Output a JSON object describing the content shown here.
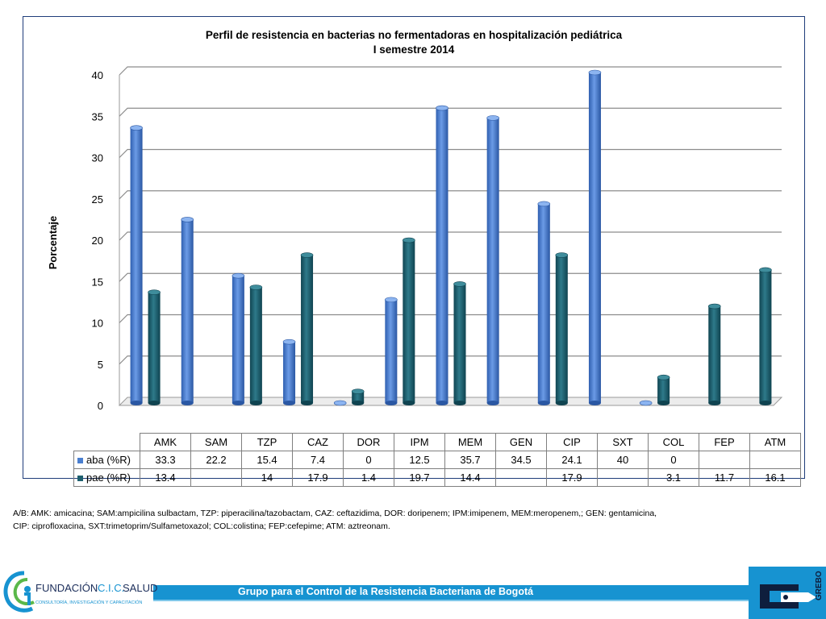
{
  "chart_data": {
    "type": "bar",
    "title": "Perfil de resistencia en bacterias no fermentadoras en hospitalización pediátrica",
    "subtitle": "I semestre 2014",
    "ylabel": "Porcentaje",
    "xlabel": "",
    "ylim": [
      0,
      40
    ],
    "yticks": [
      "0",
      "5",
      "10",
      "15",
      "20",
      "25",
      "30",
      "35",
      "40"
    ],
    "grid": true,
    "legend_placement": "data table",
    "categories": [
      "AMK",
      "SAM",
      "TZP",
      "CAZ",
      "DOR",
      "IPM",
      "MEM",
      "GEN",
      "CIP",
      "SXT",
      "COL",
      "FEP",
      "ATM"
    ],
    "series": [
      {
        "name": "aba (%R)",
        "color": "#4a7fd0",
        "values": [
          33.3,
          22.2,
          15.4,
          7.4,
          0,
          12.5,
          35.7,
          34.5,
          24.1,
          40,
          0,
          null,
          null
        ],
        "labels": [
          "33.3",
          "22.2",
          "15.4",
          "7.4",
          "0",
          "12.5",
          "35.7",
          "34.5",
          "24.1",
          "40",
          "0",
          "",
          ""
        ]
      },
      {
        "name": "pae (%R)",
        "color": "#1d5f6e",
        "values": [
          13.4,
          null,
          14,
          17.9,
          1.4,
          19.7,
          14.4,
          null,
          17.9,
          null,
          3.1,
          11.7,
          16.1
        ],
        "labels": [
          "13.4",
          "",
          "14",
          "17.9",
          "1.4",
          "19.7",
          "14.4",
          "",
          "17.9",
          "",
          "3.1",
          "11.7",
          "16.1"
        ]
      }
    ]
  },
  "footnote": {
    "line1": "A/B: AMK: amicacina; SAM:ampicilina sulbactam, TZP: piperacilina/tazobactam, CAZ: ceftazidima, DOR: doripenem;  IPM:imipenem, MEM:meropenem,; GEN: gentamicina,",
    "line2": "CIP: ciprofloxacina, SXT:trimetoprim/Sulfametoxazol; COL:colistina; FEP:cefepime; ATM: aztreonam."
  },
  "footer": {
    "org_name_part1": "FUNDACIÓN",
    "org_name_part2": "C.I.C.",
    "org_name_part3": "SALUD",
    "org_tagline": "CONSULTORÍA, INVESTIGACIÓN Y CAPACITACIÓN",
    "banner_text": "Grupo para el Control de la Resistencia Bacteriana de Bogotá",
    "grebo_text": "GREBO"
  }
}
